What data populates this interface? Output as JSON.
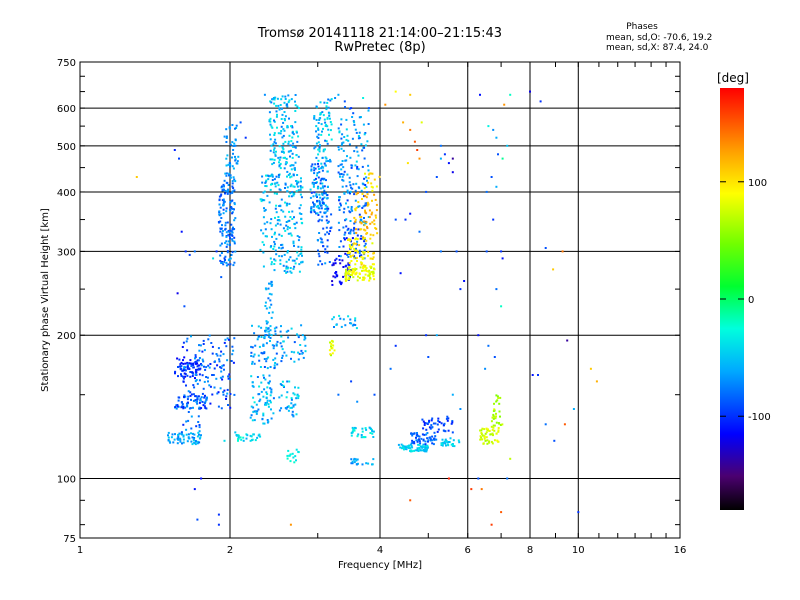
{
  "header": {
    "title_line1": "Tromsø 20141118 21:14:00–21:15:43",
    "title_line2": "RwPretec (8p)",
    "phases_title": "Phases",
    "phases_o": "mean, sd,O: -70.6, 19.2",
    "phases_x": "mean, sd,X:  87.4, 24.0"
  },
  "chart_data": {
    "type": "scatter",
    "xlabel": "Frequency [MHz]",
    "ylabel": "Stationary phase Virtual Height [km]",
    "x_scale": "log",
    "y_scale": "log",
    "xlim": [
      1,
      16
    ],
    "ylim": [
      75,
      750
    ],
    "x_ticks": [
      1,
      2,
      4,
      6,
      8,
      10,
      16
    ],
    "y_ticks": [
      75,
      100,
      200,
      300,
      400,
      500,
      600,
      750
    ],
    "grid": true,
    "colorbar": {
      "label": "[deg]",
      "ticks": [
        -100,
        0,
        100
      ],
      "range": [
        -180,
        180
      ]
    },
    "points": [
      [
        1.55,
        490,
        -105
      ],
      [
        1.58,
        470,
        -95
      ],
      [
        1.6,
        330,
        -110
      ],
      [
        1.63,
        300,
        -100
      ],
      [
        1.62,
        230,
        -90
      ],
      [
        1.57,
        245,
        -120
      ],
      [
        1.66,
        295,
        -95
      ],
      [
        1.7,
        300,
        -80
      ],
      [
        1.85,
        290,
        -40
      ],
      [
        1.88,
        300,
        -100
      ],
      [
        1.95,
        290,
        -95
      ],
      [
        2.0,
        310,
        -80
      ],
      [
        1.92,
        265,
        -85
      ],
      [
        1.98,
        345,
        -90
      ],
      [
        2.0,
        460,
        -80
      ],
      [
        2.05,
        500,
        -75
      ],
      [
        2.1,
        560,
        -90
      ],
      [
        2.15,
        520,
        -100
      ],
      [
        1.95,
        120,
        -40
      ],
      [
        2.05,
        125,
        -50
      ],
      [
        2.2,
        120,
        -40
      ],
      [
        2.1,
        122,
        -20
      ],
      [
        1.7,
        95,
        -110
      ],
      [
        1.72,
        82,
        -90
      ],
      [
        1.9,
        80,
        -100
      ],
      [
        1.9,
        84,
        -100
      ],
      [
        1.75,
        100,
        -110
      ],
      [
        2.65,
        80,
        130
      ],
      [
        1.3,
        430,
        110
      ],
      [
        2.35,
        640,
        -70
      ],
      [
        2.45,
        630,
        -60
      ],
      [
        2.55,
        635,
        -50
      ],
      [
        2.6,
        610,
        -80
      ],
      [
        2.75,
        600,
        -40
      ],
      [
        3.25,
        630,
        -70
      ],
      [
        3.3,
        640,
        -60
      ],
      [
        3.4,
        620,
        -90
      ],
      [
        3.5,
        600,
        -100
      ],
      [
        3.7,
        630,
        -30
      ],
      [
        3.8,
        600,
        -90
      ],
      [
        4.1,
        610,
        130
      ],
      [
        4.3,
        650,
        90
      ],
      [
        4.6,
        640,
        110
      ],
      [
        4.45,
        560,
        120
      ],
      [
        4.6,
        540,
        140
      ],
      [
        4.7,
        510,
        150
      ],
      [
        4.75,
        490,
        160
      ],
      [
        4.8,
        470,
        130
      ],
      [
        4.55,
        460,
        100
      ],
      [
        4.85,
        560,
        80
      ],
      [
        5.3,
        500,
        -80
      ],
      [
        5.4,
        480,
        -100
      ],
      [
        5.5,
        460,
        -110
      ],
      [
        5.6,
        440,
        -120
      ],
      [
        5.6,
        470,
        -140
      ],
      [
        5.3,
        470,
        -60
      ],
      [
        5.2,
        430,
        -90
      ],
      [
        4.95,
        400,
        -90
      ],
      [
        4.6,
        360,
        -110
      ],
      [
        4.5,
        350,
        -100
      ],
      [
        4.8,
        330,
        -80
      ],
      [
        4.3,
        350,
        -90
      ],
      [
        4.4,
        270,
        -110
      ],
      [
        5.0,
        180,
        -90
      ],
      [
        4.95,
        200,
        -100
      ],
      [
        4.3,
        190,
        -100
      ],
      [
        4.2,
        170,
        -80
      ],
      [
        3.9,
        150,
        -90
      ],
      [
        3.6,
        145,
        -70
      ],
      [
        3.3,
        150,
        -80
      ],
      [
        3.5,
        160,
        -95
      ],
      [
        6.35,
        640,
        -110
      ],
      [
        6.6,
        550,
        -30
      ],
      [
        6.75,
        540,
        -70
      ],
      [
        6.85,
        520,
        -60
      ],
      [
        6.9,
        480,
        -90
      ],
      [
        7.2,
        500,
        -50
      ],
      [
        7.3,
        640,
        -20
      ],
      [
        7.1,
        610,
        130
      ],
      [
        7.05,
        470,
        -10
      ],
      [
        6.7,
        430,
        -90
      ],
      [
        6.85,
        410,
        -60
      ],
      [
        6.55,
        400,
        -80
      ],
      [
        6.75,
        350,
        -100
      ],
      [
        6.55,
        300,
        -90
      ],
      [
        6.85,
        250,
        -80
      ],
      [
        7.05,
        290,
        -110
      ],
      [
        7.0,
        300,
        -100
      ],
      [
        7.0,
        230,
        -20
      ],
      [
        6.3,
        200,
        -110
      ],
      [
        6.6,
        190,
        -80
      ],
      [
        6.8,
        180,
        -90
      ],
      [
        6.5,
        170,
        -70
      ],
      [
        5.8,
        250,
        -100
      ],
      [
        5.9,
        260,
        -110
      ],
      [
        5.7,
        300,
        -90
      ],
      [
        5.3,
        300,
        -80
      ],
      [
        5.2,
        200,
        -60
      ],
      [
        5.6,
        150,
        -60
      ],
      [
        5.8,
        140,
        -70
      ],
      [
        5.6,
        125,
        -90
      ],
      [
        5.5,
        100,
        170
      ],
      [
        4.6,
        90,
        150
      ],
      [
        6.1,
        95,
        160
      ],
      [
        6.4,
        95,
        140
      ],
      [
        6.3,
        100,
        -90
      ],
      [
        6.7,
        80,
        160
      ],
      [
        7.0,
        85,
        150
      ],
      [
        7.2,
        100,
        -80
      ],
      [
        7.3,
        110,
        70
      ],
      [
        8.1,
        165,
        -110
      ],
      [
        8.3,
        165,
        -100
      ],
      [
        8.6,
        305,
        -90
      ],
      [
        8.9,
        275,
        110
      ],
      [
        8.6,
        130,
        -80
      ],
      [
        8.95,
        120,
        -90
      ],
      [
        9.3,
        300,
        140
      ],
      [
        9.4,
        130,
        150
      ],
      [
        9.5,
        195,
        -140
      ],
      [
        9.8,
        140,
        -60
      ],
      [
        10.0,
        85,
        -100
      ],
      [
        10.6,
        170,
        110
      ],
      [
        10.9,
        160,
        120
      ],
      [
        8.0,
        650,
        -120
      ],
      [
        8.4,
        620,
        -100
      ]
    ],
    "clusters": [
      {
        "x": [
          1.55,
          1.75
        ],
        "y": [
          162,
          180
        ],
        "n": 70,
        "c": [
          -120,
          -90
        ]
      },
      {
        "x": [
          1.55,
          1.8
        ],
        "y": [
          140,
          150
        ],
        "n": 60,
        "c": [
          -110,
          -60
        ]
      },
      {
        "x": [
          1.5,
          1.75
        ],
        "y": [
          118,
          125
        ],
        "n": 60,
        "c": [
          -80,
          -40
        ]
      },
      {
        "x": [
          1.6,
          1.75
        ],
        "y": [
          125,
          200
        ],
        "n": 60,
        "c": [
          -110,
          -60
        ]
      },
      {
        "x": [
          1.75,
          2.05
        ],
        "y": [
          140,
          200
        ],
        "n": 90,
        "c": [
          -110,
          -60
        ]
      },
      {
        "x": [
          1.9,
          2.05
        ],
        "y": [
          280,
          420
        ],
        "n": 140,
        "c": [
          -95,
          -60
        ]
      },
      {
        "x": [
          1.95,
          2.08
        ],
        "y": [
          420,
          560
        ],
        "n": 50,
        "c": [
          -80,
          -50
        ]
      },
      {
        "x": [
          2.05,
          2.3
        ],
        "y": [
          120,
          124
        ],
        "n": 25,
        "c": [
          -60,
          -20
        ]
      },
      {
        "x": [
          2.2,
          2.5
        ],
        "y": [
          170,
          210
        ],
        "n": 70,
        "c": [
          -90,
          -40
        ]
      },
      {
        "x": [
          2.2,
          2.45
        ],
        "y": [
          130,
          165
        ],
        "n": 70,
        "c": [
          -80,
          -30
        ]
      },
      {
        "x": [
          2.35,
          2.45
        ],
        "y": [
          200,
          260
        ],
        "n": 30,
        "c": [
          -80,
          -50
        ]
      },
      {
        "x": [
          2.3,
          2.8
        ],
        "y": [
          270,
          440
        ],
        "n": 230,
        "c": [
          -80,
          -30
        ]
      },
      {
        "x": [
          2.4,
          2.75
        ],
        "y": [
          440,
          640
        ],
        "n": 150,
        "c": [
          -80,
          -30
        ]
      },
      {
        "x": [
          2.5,
          2.85
        ],
        "y": [
          175,
          210
        ],
        "n": 40,
        "c": [
          -90,
          -40
        ]
      },
      {
        "x": [
          2.5,
          2.75
        ],
        "y": [
          135,
          160
        ],
        "n": 40,
        "c": [
          -80,
          -30
        ]
      },
      {
        "x": [
          2.6,
          2.75
        ],
        "y": [
          108,
          115
        ],
        "n": 15,
        "c": [
          -40,
          -20
        ]
      },
      {
        "x": [
          2.9,
          3.15
        ],
        "y": [
          360,
          460
        ],
        "n": 120,
        "c": [
          -100,
          -40
        ]
      },
      {
        "x": [
          2.95,
          3.2
        ],
        "y": [
          460,
          640
        ],
        "n": 80,
        "c": [
          -80,
          -30
        ]
      },
      {
        "x": [
          3.0,
          3.2
        ],
        "y": [
          280,
          360
        ],
        "n": 40,
        "c": [
          -100,
          -60
        ]
      },
      {
        "x": [
          3.2,
          3.5
        ],
        "y": [
          255,
          290
        ],
        "n": 40,
        "c": [
          -130,
          -100
        ]
      },
      {
        "x": [
          3.3,
          3.75
        ],
        "y": [
          290,
          340
        ],
        "n": 60,
        "c": [
          -120,
          -60
        ]
      },
      {
        "x": [
          3.3,
          3.8
        ],
        "y": [
          340,
          460
        ],
        "n": 100,
        "c": [
          -100,
          -50
        ]
      },
      {
        "x": [
          3.3,
          3.8
        ],
        "y": [
          460,
          610
        ],
        "n": 60,
        "c": [
          -90,
          -40
        ]
      },
      {
        "x": [
          3.4,
          3.9
        ],
        "y": [
          260,
          280
        ],
        "n": 90,
        "c": [
          70,
          95
        ]
      },
      {
        "x": [
          3.45,
          3.9
        ],
        "y": [
          280,
          320
        ],
        "n": 60,
        "c": [
          80,
          110
        ]
      },
      {
        "x": [
          3.55,
          3.95
        ],
        "y": [
          320,
          400
        ],
        "n": 60,
        "c": [
          100,
          130
        ]
      },
      {
        "x": [
          3.7,
          4.0
        ],
        "y": [
          400,
          440
        ],
        "n": 15,
        "c": [
          80,
          110
        ]
      },
      {
        "x": [
          3.15,
          3.25
        ],
        "y": [
          180,
          195
        ],
        "n": 15,
        "c": [
          60,
          100
        ]
      },
      {
        "x": [
          3.2,
          3.6
        ],
        "y": [
          205,
          220
        ],
        "n": 20,
        "c": [
          -90,
          -30
        ]
      },
      {
        "x": [
          3.5,
          3.9
        ],
        "y": [
          122,
          128
        ],
        "n": 30,
        "c": [
          -60,
          -20
        ]
      },
      {
        "x": [
          3.5,
          3.9
        ],
        "y": [
          107,
          110
        ],
        "n": 20,
        "c": [
          -80,
          -50
        ]
      },
      {
        "x": [
          4.35,
          5.0
        ],
        "y": [
          114,
          118
        ],
        "n": 70,
        "c": [
          -60,
          -30
        ]
      },
      {
        "x": [
          4.6,
          5.2
        ],
        "y": [
          118,
          125
        ],
        "n": 50,
        "c": [
          -100,
          -70
        ]
      },
      {
        "x": [
          4.8,
          5.6
        ],
        "y": [
          125,
          135
        ],
        "n": 40,
        "c": [
          -110,
          -80
        ]
      },
      {
        "x": [
          5.3,
          5.8
        ],
        "y": [
          117,
          122
        ],
        "n": 30,
        "c": [
          -60,
          -30
        ]
      },
      {
        "x": [
          6.35,
          6.95
        ],
        "y": [
          118,
          128
        ],
        "n": 50,
        "c": [
          60,
          90
        ]
      },
      {
        "x": [
          6.7,
          7.05
        ],
        "y": [
          128,
          150
        ],
        "n": 30,
        "c": [
          50,
          80
        ]
      }
    ]
  }
}
